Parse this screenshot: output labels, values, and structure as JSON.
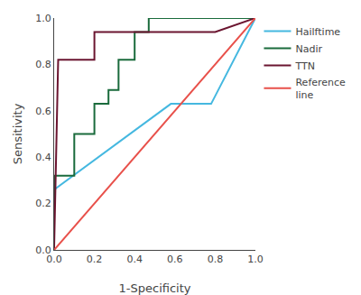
{
  "chart_data": {
    "type": "line",
    "xlabel": "1-Specificity",
    "ylabel": "Sensitivity",
    "xlim": [
      0.0,
      1.0
    ],
    "ylim": [
      0.0,
      1.0
    ],
    "xticks": [
      {
        "value": 0.0,
        "label": "0.0"
      },
      0.2,
      0.4,
      0.6,
      0.8,
      {
        "value": 1.0,
        "label": "1.0"
      }
    ],
    "yticks": [
      {
        "value": 0.0,
        "label": "0.0"
      },
      0.2,
      0.4,
      0.6,
      0.8,
      {
        "value": 1.0,
        "label": "1.0"
      }
    ],
    "grid": false,
    "legend": "right",
    "series": [
      {
        "name": "Hailftime",
        "color": "#45B8E0",
        "x": [
          0.0,
          0.0,
          0.58,
          0.78,
          1.0
        ],
        "values": [
          0.0,
          0.26,
          0.63,
          0.63,
          1.0
        ]
      },
      {
        "name": "Nadir",
        "color": "#1A6B3C",
        "x": [
          0.0,
          0.0,
          0.1,
          0.1,
          0.2,
          0.2,
          0.27,
          0.27,
          0.32,
          0.32,
          0.4,
          0.4,
          0.47,
          0.47,
          0.5,
          0.5,
          1.0
        ],
        "values": [
          0.0,
          0.32,
          0.32,
          0.5,
          0.5,
          0.63,
          0.63,
          0.69,
          0.69,
          0.82,
          0.82,
          0.94,
          0.94,
          1.0,
          1.0,
          1.0,
          1.0
        ]
      },
      {
        "name": "TTN",
        "color": "#6B1530",
        "x": [
          0.0,
          0.0,
          0.02,
          0.2,
          0.2,
          0.42,
          0.42,
          0.8,
          1.0
        ],
        "values": [
          0.0,
          0.01,
          0.82,
          0.82,
          0.94,
          0.94,
          0.94,
          0.94,
          1.0
        ]
      },
      {
        "name": "Reference\nline",
        "color": "#E8504A",
        "x": [
          0.0,
          1.0
        ],
        "values": [
          0.0,
          1.0
        ]
      }
    ]
  }
}
